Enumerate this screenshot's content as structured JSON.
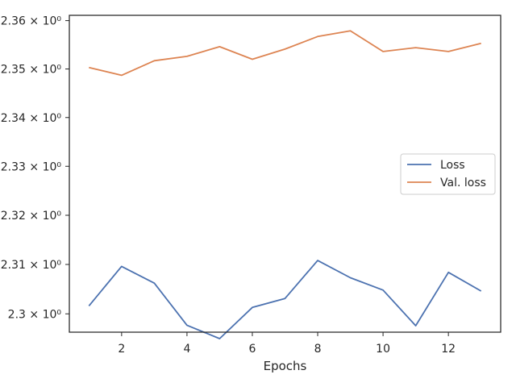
{
  "chart_data": {
    "type": "line",
    "title": "",
    "xlabel": "Epochs",
    "ylabel": "",
    "xlim": [
      0.4,
      13.6
    ],
    "ylim": [
      2.2963,
      2.3611
    ],
    "y_scale": "log",
    "x_ticks": [
      2,
      4,
      6,
      8,
      10,
      12
    ],
    "x_tick_labels": [
      "2",
      "4",
      "6",
      "8",
      "10",
      "12"
    ],
    "y_ticks": [
      2.3,
      2.31,
      2.32,
      2.33,
      2.34,
      2.35,
      2.36
    ],
    "y_tick_labels": [
      "2.3 × 10⁰",
      "2.31 × 10⁰",
      "2.32 × 10⁰",
      "2.33 × 10⁰",
      "2.34 × 10⁰",
      "2.35 × 10⁰",
      "2.36 × 10⁰"
    ],
    "grid": false,
    "legend_position": "center-right",
    "x": [
      1,
      2,
      3,
      4,
      5,
      6,
      7,
      8,
      9,
      10,
      11,
      12,
      13
    ],
    "series": [
      {
        "name": "Loss",
        "color": "#4c72b0",
        "values": [
          2.3016,
          2.3096,
          2.3062,
          2.2977,
          2.295,
          2.3013,
          2.3031,
          2.3108,
          2.3073,
          2.3048,
          2.2976,
          2.3084,
          2.3046
        ]
      },
      {
        "name": "Val. loss",
        "color": "#dd8452",
        "values": [
          2.3503,
          2.3487,
          2.3517,
          2.3526,
          2.3546,
          2.352,
          2.3541,
          2.3567,
          2.3579,
          2.3536,
          2.3544,
          2.3536,
          2.3553
        ]
      }
    ]
  }
}
